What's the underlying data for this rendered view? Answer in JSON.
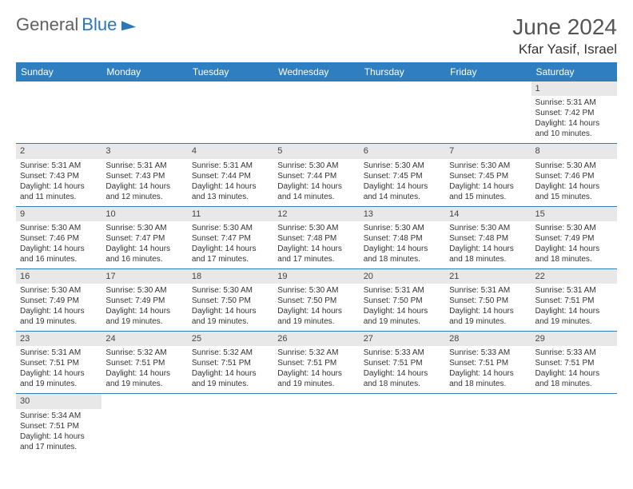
{
  "logo": {
    "text1": "General",
    "text2": "Blue"
  },
  "title": "June 2024",
  "location": "Kfar Yasif, Israel",
  "colors": {
    "header_bg": "#2f7fc0",
    "header_text": "#ffffff",
    "daynum_bg": "#e8e8e8",
    "border": "#2f7fc0",
    "empty_bg": "#eeeeee"
  },
  "day_headers": [
    "Sunday",
    "Monday",
    "Tuesday",
    "Wednesday",
    "Thursday",
    "Friday",
    "Saturday"
  ],
  "weeks": [
    [
      null,
      null,
      null,
      null,
      null,
      null,
      {
        "n": "1",
        "sr": "Sunrise: 5:31 AM",
        "ss": "Sunset: 7:42 PM",
        "dl": "Daylight: 14 hours and 10 minutes."
      }
    ],
    [
      {
        "n": "2",
        "sr": "Sunrise: 5:31 AM",
        "ss": "Sunset: 7:43 PM",
        "dl": "Daylight: 14 hours and 11 minutes."
      },
      {
        "n": "3",
        "sr": "Sunrise: 5:31 AM",
        "ss": "Sunset: 7:43 PM",
        "dl": "Daylight: 14 hours and 12 minutes."
      },
      {
        "n": "4",
        "sr": "Sunrise: 5:31 AM",
        "ss": "Sunset: 7:44 PM",
        "dl": "Daylight: 14 hours and 13 minutes."
      },
      {
        "n": "5",
        "sr": "Sunrise: 5:30 AM",
        "ss": "Sunset: 7:44 PM",
        "dl": "Daylight: 14 hours and 14 minutes."
      },
      {
        "n": "6",
        "sr": "Sunrise: 5:30 AM",
        "ss": "Sunset: 7:45 PM",
        "dl": "Daylight: 14 hours and 14 minutes."
      },
      {
        "n": "7",
        "sr": "Sunrise: 5:30 AM",
        "ss": "Sunset: 7:45 PM",
        "dl": "Daylight: 14 hours and 15 minutes."
      },
      {
        "n": "8",
        "sr": "Sunrise: 5:30 AM",
        "ss": "Sunset: 7:46 PM",
        "dl": "Daylight: 14 hours and 15 minutes."
      }
    ],
    [
      {
        "n": "9",
        "sr": "Sunrise: 5:30 AM",
        "ss": "Sunset: 7:46 PM",
        "dl": "Daylight: 14 hours and 16 minutes."
      },
      {
        "n": "10",
        "sr": "Sunrise: 5:30 AM",
        "ss": "Sunset: 7:47 PM",
        "dl": "Daylight: 14 hours and 16 minutes."
      },
      {
        "n": "11",
        "sr": "Sunrise: 5:30 AM",
        "ss": "Sunset: 7:47 PM",
        "dl": "Daylight: 14 hours and 17 minutes."
      },
      {
        "n": "12",
        "sr": "Sunrise: 5:30 AM",
        "ss": "Sunset: 7:48 PM",
        "dl": "Daylight: 14 hours and 17 minutes."
      },
      {
        "n": "13",
        "sr": "Sunrise: 5:30 AM",
        "ss": "Sunset: 7:48 PM",
        "dl": "Daylight: 14 hours and 18 minutes."
      },
      {
        "n": "14",
        "sr": "Sunrise: 5:30 AM",
        "ss": "Sunset: 7:48 PM",
        "dl": "Daylight: 14 hours and 18 minutes."
      },
      {
        "n": "15",
        "sr": "Sunrise: 5:30 AM",
        "ss": "Sunset: 7:49 PM",
        "dl": "Daylight: 14 hours and 18 minutes."
      }
    ],
    [
      {
        "n": "16",
        "sr": "Sunrise: 5:30 AM",
        "ss": "Sunset: 7:49 PM",
        "dl": "Daylight: 14 hours and 19 minutes."
      },
      {
        "n": "17",
        "sr": "Sunrise: 5:30 AM",
        "ss": "Sunset: 7:49 PM",
        "dl": "Daylight: 14 hours and 19 minutes."
      },
      {
        "n": "18",
        "sr": "Sunrise: 5:30 AM",
        "ss": "Sunset: 7:50 PM",
        "dl": "Daylight: 14 hours and 19 minutes."
      },
      {
        "n": "19",
        "sr": "Sunrise: 5:30 AM",
        "ss": "Sunset: 7:50 PM",
        "dl": "Daylight: 14 hours and 19 minutes."
      },
      {
        "n": "20",
        "sr": "Sunrise: 5:31 AM",
        "ss": "Sunset: 7:50 PM",
        "dl": "Daylight: 14 hours and 19 minutes."
      },
      {
        "n": "21",
        "sr": "Sunrise: 5:31 AM",
        "ss": "Sunset: 7:50 PM",
        "dl": "Daylight: 14 hours and 19 minutes."
      },
      {
        "n": "22",
        "sr": "Sunrise: 5:31 AM",
        "ss": "Sunset: 7:51 PM",
        "dl": "Daylight: 14 hours and 19 minutes."
      }
    ],
    [
      {
        "n": "23",
        "sr": "Sunrise: 5:31 AM",
        "ss": "Sunset: 7:51 PM",
        "dl": "Daylight: 14 hours and 19 minutes."
      },
      {
        "n": "24",
        "sr": "Sunrise: 5:32 AM",
        "ss": "Sunset: 7:51 PM",
        "dl": "Daylight: 14 hours and 19 minutes."
      },
      {
        "n": "25",
        "sr": "Sunrise: 5:32 AM",
        "ss": "Sunset: 7:51 PM",
        "dl": "Daylight: 14 hours and 19 minutes."
      },
      {
        "n": "26",
        "sr": "Sunrise: 5:32 AM",
        "ss": "Sunset: 7:51 PM",
        "dl": "Daylight: 14 hours and 19 minutes."
      },
      {
        "n": "27",
        "sr": "Sunrise: 5:33 AM",
        "ss": "Sunset: 7:51 PM",
        "dl": "Daylight: 14 hours and 18 minutes."
      },
      {
        "n": "28",
        "sr": "Sunrise: 5:33 AM",
        "ss": "Sunset: 7:51 PM",
        "dl": "Daylight: 14 hours and 18 minutes."
      },
      {
        "n": "29",
        "sr": "Sunrise: 5:33 AM",
        "ss": "Sunset: 7:51 PM",
        "dl": "Daylight: 14 hours and 18 minutes."
      }
    ],
    [
      {
        "n": "30",
        "sr": "Sunrise: 5:34 AM",
        "ss": "Sunset: 7:51 PM",
        "dl": "Daylight: 14 hours and 17 minutes."
      },
      null,
      null,
      null,
      null,
      null,
      null
    ]
  ]
}
